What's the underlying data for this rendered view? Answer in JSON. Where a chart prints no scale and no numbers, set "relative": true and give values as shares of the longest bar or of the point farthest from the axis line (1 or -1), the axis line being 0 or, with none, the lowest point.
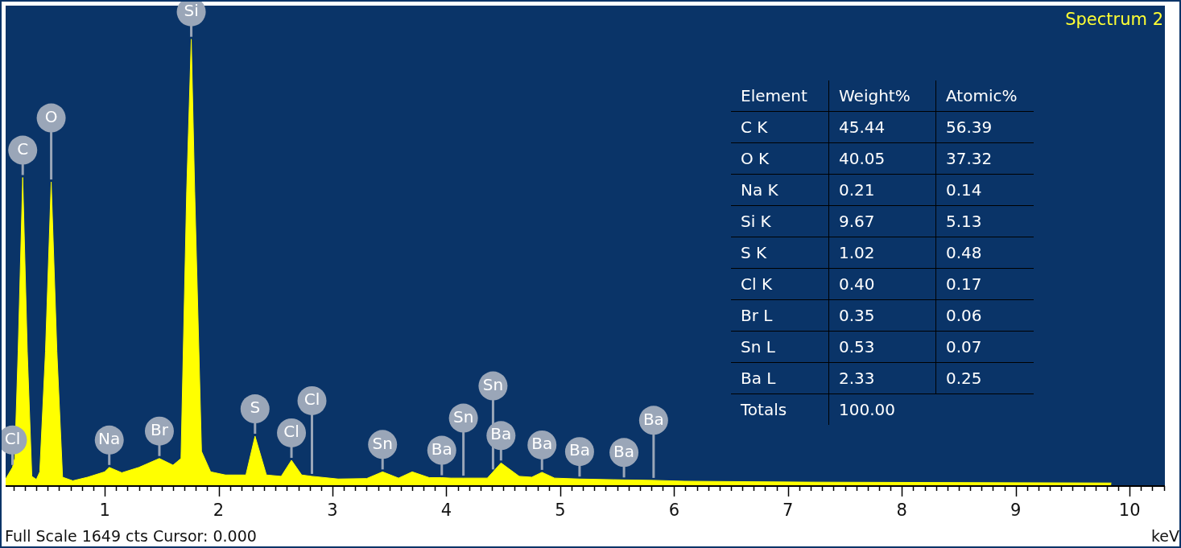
{
  "chart_data": [
    {
      "type": "area",
      "title": "Spectrum 2",
      "xlabel": "keV",
      "relative": true,
      "xlim": [
        0.13,
        10.31
      ],
      "xticks": [
        {
          "value": 0.2,
          "label": null
        },
        {
          "value": 0.3,
          "label": null
        },
        {
          "value": 0.4,
          "label": null
        },
        {
          "value": 0.5,
          "label": null
        },
        {
          "value": 0.6,
          "label": null
        },
        {
          "value": 0.7,
          "label": null
        },
        {
          "value": 0.8,
          "label": null
        },
        {
          "value": 0.9,
          "label": null
        },
        1,
        {
          "value": 1.1,
          "label": null
        },
        {
          "value": 1.2,
          "label": null
        },
        {
          "value": 1.3,
          "label": null
        },
        {
          "value": 1.4,
          "label": null
        },
        {
          "value": 1.5,
          "label": null
        },
        {
          "value": 1.6,
          "label": null
        },
        {
          "value": 1.7,
          "label": null
        },
        {
          "value": 1.8,
          "label": null
        },
        {
          "value": 1.9,
          "label": null
        },
        2,
        {
          "value": 2.1,
          "label": null
        },
        {
          "value": 2.2,
          "label": null
        },
        {
          "value": 2.3,
          "label": null
        },
        {
          "value": 2.4,
          "label": null
        },
        {
          "value": 2.5,
          "label": null
        },
        {
          "value": 2.6,
          "label": null
        },
        {
          "value": 2.7,
          "label": null
        },
        {
          "value": 2.8,
          "label": null
        },
        {
          "value": 2.9,
          "label": null
        },
        3,
        {
          "value": 3.1,
          "label": null
        },
        {
          "value": 3.2,
          "label": null
        },
        {
          "value": 3.3,
          "label": null
        },
        {
          "value": 3.4,
          "label": null
        },
        {
          "value": 3.5,
          "label": null
        },
        {
          "value": 3.6,
          "label": null
        },
        {
          "value": 3.7,
          "label": null
        },
        {
          "value": 3.8,
          "label": null
        },
        {
          "value": 3.9,
          "label": null
        },
        4,
        {
          "value": 4.1,
          "label": null
        },
        {
          "value": 4.2,
          "label": null
        },
        {
          "value": 4.3,
          "label": null
        },
        {
          "value": 4.4,
          "label": null
        },
        {
          "value": 4.5,
          "label": null
        },
        {
          "value": 4.6,
          "label": null
        },
        {
          "value": 4.7,
          "label": null
        },
        {
          "value": 4.8,
          "label": null
        },
        {
          "value": 4.9,
          "label": null
        },
        5,
        {
          "value": 5.1,
          "label": null
        },
        {
          "value": 5.2,
          "label": null
        },
        {
          "value": 5.3,
          "label": null
        },
        {
          "value": 5.4,
          "label": null
        },
        {
          "value": 5.5,
          "label": null
        },
        {
          "value": 5.6,
          "label": null
        },
        {
          "value": 5.7,
          "label": null
        },
        {
          "value": 5.8,
          "label": null
        },
        {
          "value": 5.9,
          "label": null
        },
        6,
        {
          "value": 6.1,
          "label": null
        },
        {
          "value": 6.2,
          "label": null
        },
        {
          "value": 6.3,
          "label": null
        },
        {
          "value": 6.4,
          "label": null
        },
        {
          "value": 6.5,
          "label": null
        },
        {
          "value": 6.6,
          "label": null
        },
        {
          "value": 6.7,
          "label": null
        },
        {
          "value": 6.8,
          "label": null
        },
        {
          "value": 6.9,
          "label": null
        },
        7,
        {
          "value": 7.1,
          "label": null
        },
        {
          "value": 7.2,
          "label": null
        },
        {
          "value": 7.3,
          "label": null
        },
        {
          "value": 7.4,
          "label": null
        },
        {
          "value": 7.5,
          "label": null
        },
        {
          "value": 7.6,
          "label": null
        },
        {
          "value": 7.7,
          "label": null
        },
        {
          "value": 7.8,
          "label": null
        },
        {
          "value": 7.9,
          "label": null
        },
        8,
        {
          "value": 8.1,
          "label": null
        },
        {
          "value": 8.2,
          "label": null
        },
        {
          "value": 8.3,
          "label": null
        },
        {
          "value": 8.4,
          "label": null
        },
        {
          "value": 8.5,
          "label": null
        },
        {
          "value": 8.6,
          "label": null
        },
        {
          "value": 8.7,
          "label": null
        },
        {
          "value": 8.8,
          "label": null
        },
        {
          "value": 8.9,
          "label": null
        },
        9,
        {
          "value": 9.1,
          "label": null
        },
        {
          "value": 9.2,
          "label": null
        },
        {
          "value": 9.3,
          "label": null
        },
        {
          "value": 9.4,
          "label": null
        },
        {
          "value": 9.5,
          "label": null
        },
        {
          "value": 9.6,
          "label": null
        },
        {
          "value": 9.7,
          "label": null
        },
        {
          "value": 9.8,
          "label": null
        },
        {
          "value": 9.9,
          "label": null
        },
        10,
        {
          "value": 10.1,
          "label": null
        },
        {
          "value": 10.2,
          "label": null
        },
        {
          "value": 10.3,
          "label": null
        }
      ],
      "series": [
        {
          "color": "#ffff00",
          "x": [
            0.13,
            0.19,
            0.21,
            0.24,
            0.28,
            0.32,
            0.36,
            0.4,
            0.43,
            0.48,
            0.53,
            0.58,
            0.63,
            0.72,
            0.85,
            1.0,
            1.04,
            1.15,
            1.3,
            1.48,
            1.6,
            1.67,
            1.72,
            1.76,
            1.79,
            1.85,
            1.93,
            2.06,
            2.24,
            2.32,
            2.42,
            2.55,
            2.64,
            2.73,
            2.82,
            3.05,
            3.3,
            3.44,
            3.58,
            3.7,
            3.85,
            3.96,
            4.04,
            4.15,
            4.36,
            4.41,
            4.48,
            4.64,
            4.75,
            4.84,
            4.95,
            5.17,
            5.56,
            5.82,
            6.09,
            7.15,
            8.5,
            9.84
          ],
          "values": [
            0.014,
            0.04,
            0.06,
            0.3,
            0.69,
            0.3,
            0.02,
            0.013,
            0.03,
            0.3,
            0.68,
            0.3,
            0.018,
            0.01,
            0.018,
            0.03,
            0.04,
            0.028,
            0.04,
            0.06,
            0.045,
            0.06,
            0.66,
            1.0,
            0.66,
            0.076,
            0.03,
            0.023,
            0.023,
            0.11,
            0.023,
            0.02,
            0.056,
            0.023,
            0.02,
            0.014,
            0.015,
            0.03,
            0.016,
            0.03,
            0.017,
            0.017,
            0.016,
            0.016,
            0.016,
            0.03,
            0.05,
            0.02,
            0.018,
            0.029,
            0.016,
            0.014,
            0.012,
            0.011,
            0.009,
            0.007,
            0.006,
            0.005
          ]
        }
      ],
      "annotations": [
        {
          "text": "Cl",
          "x": 0.19,
          "y": 0.04
        },
        {
          "text": "C",
          "x": 0.28,
          "y": 0.69
        },
        {
          "text": "O",
          "x": 0.53,
          "y": 0.68
        },
        {
          "text": "Si",
          "x": 1.76,
          "y": 1.0
        },
        {
          "text": "Na",
          "x": 1.04,
          "y": 0.04
        },
        {
          "text": "Br",
          "x": 1.48,
          "y": 0.06
        },
        {
          "text": "S",
          "x": 2.32,
          "y": 0.11
        },
        {
          "text": "Cl",
          "x": 2.64,
          "y": 0.056
        },
        {
          "text": "Cl",
          "x": 2.82,
          "y": 0.02
        },
        {
          "text": "Sn",
          "x": 3.44,
          "y": 0.03
        },
        {
          "text": "Ba",
          "x": 3.96,
          "y": 0.017
        },
        {
          "text": "Sn",
          "x": 4.15,
          "y": 0.016
        },
        {
          "text": "Sn",
          "x": 4.41,
          "y": 0.03
        },
        {
          "text": "Ba",
          "x": 4.48,
          "y": 0.05
        },
        {
          "text": "Ba",
          "x": 4.84,
          "y": 0.029
        },
        {
          "text": "Ba",
          "x": 5.17,
          "y": 0.014
        },
        {
          "text": "Ba",
          "x": 5.56,
          "y": 0.012
        },
        {
          "text": "Ba",
          "x": 5.82,
          "y": 0.011
        },
        "Full Scale 1649 cts Cursor: 0.000"
      ]
    },
    {
      "type": "other",
      "ylabel": "Element",
      "categories": [
        "Weight%",
        "Atomic%"
      ],
      "y_categories": [
        "C K",
        "O K",
        "Na K",
        "Si K",
        "S K",
        "Cl K",
        "Br L",
        "Sn L",
        "Ba L",
        "Totals"
      ],
      "cell_labels": [
        [
          "45.44",
          "56.39"
        ],
        [
          "40.05",
          "37.32"
        ],
        [
          "0.21",
          "0.14"
        ],
        [
          "9.67",
          "5.13"
        ],
        [
          "1.02",
          "0.48"
        ],
        [
          "0.40",
          "0.17"
        ],
        [
          "0.35",
          "0.06"
        ],
        [
          "0.53",
          "0.07"
        ],
        [
          "2.33",
          "0.25"
        ],
        [
          "100.00",
          null
        ]
      ]
    }
  ]
}
